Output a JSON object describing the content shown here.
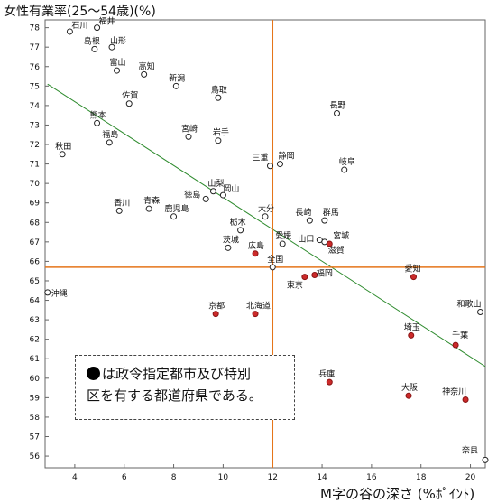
{
  "chart_data": {
    "type": "scatter",
    "ylabel": "女性有業率(25～54歳)(%)",
    "xlabel": "M字の谷の深さ (%ﾎﾟｲﾝﾄ)",
    "xlim": [
      2.8,
      20.6
    ],
    "ylim": [
      55.4,
      78.4
    ],
    "xticks": [
      4,
      6,
      8,
      10,
      12,
      14,
      16,
      18,
      20
    ],
    "yticks": [
      56,
      57,
      58,
      59,
      60,
      61,
      62,
      63,
      64,
      65,
      66,
      67,
      68,
      69,
      70,
      71,
      72,
      73,
      74,
      75,
      76,
      77,
      78
    ],
    "reference_lines": {
      "x": 12,
      "y": 65.7
    },
    "trend_line": {
      "x1": 2.9,
      "y1": 75.1,
      "x2": 20.6,
      "y2": 60.6
    },
    "colors": {
      "reference": "#e5751a",
      "trend": "#2e8b2e",
      "filled": "#cc2a2a",
      "open": "#ffffff"
    },
    "points": [
      {
        "label": "石川",
        "x": 3.8,
        "y": 77.8,
        "filled": false
      },
      {
        "label": "福井",
        "x": 4.9,
        "y": 78.0,
        "filled": false
      },
      {
        "label": "島根",
        "x": 4.8,
        "y": 76.9,
        "filled": false
      },
      {
        "label": "山形",
        "x": 5.5,
        "y": 77.0,
        "filled": false
      },
      {
        "label": "富山",
        "x": 5.7,
        "y": 75.8,
        "filled": false
      },
      {
        "label": "高知",
        "x": 6.8,
        "y": 75.6,
        "filled": false
      },
      {
        "label": "新潟",
        "x": 8.1,
        "y": 75.0,
        "filled": false
      },
      {
        "label": "鳥取",
        "x": 9.8,
        "y": 74.4,
        "filled": false
      },
      {
        "label": "佐賀",
        "x": 6.2,
        "y": 74.1,
        "filled": false
      },
      {
        "label": "長野",
        "x": 14.6,
        "y": 73.6,
        "filled": false
      },
      {
        "label": "熊本",
        "x": 4.9,
        "y": 73.1,
        "filled": false
      },
      {
        "label": "福島",
        "x": 5.4,
        "y": 72.1,
        "filled": false
      },
      {
        "label": "宮崎",
        "x": 8.6,
        "y": 72.4,
        "filled": false
      },
      {
        "label": "岩手",
        "x": 9.8,
        "y": 72.2,
        "filled": false
      },
      {
        "label": "秋田",
        "x": 3.5,
        "y": 71.5,
        "filled": false
      },
      {
        "label": "三重",
        "x": 11.9,
        "y": 70.9,
        "filled": false
      },
      {
        "label": "静岡",
        "x": 12.3,
        "y": 71.0,
        "filled": false
      },
      {
        "label": "岐阜",
        "x": 14.9,
        "y": 70.7,
        "filled": false
      },
      {
        "label": "山梨",
        "x": 9.6,
        "y": 69.6,
        "filled": false
      },
      {
        "label": "徳島",
        "x": 9.3,
        "y": 69.2,
        "filled": false
      },
      {
        "label": "岡山",
        "x": 10.0,
        "y": 69.4,
        "filled": false
      },
      {
        "label": "香川",
        "x": 5.8,
        "y": 68.6,
        "filled": false
      },
      {
        "label": "青森",
        "x": 7.0,
        "y": 68.7,
        "filled": false
      },
      {
        "label": "鹿児島",
        "x": 8.0,
        "y": 68.3,
        "filled": false
      },
      {
        "label": "大分",
        "x": 11.7,
        "y": 68.3,
        "filled": false
      },
      {
        "label": "長崎",
        "x": 13.5,
        "y": 68.1,
        "filled": false
      },
      {
        "label": "群馬",
        "x": 14.1,
        "y": 68.1,
        "filled": false
      },
      {
        "label": "栃木",
        "x": 10.7,
        "y": 67.6,
        "filled": false
      },
      {
        "label": "茨城",
        "x": 10.2,
        "y": 66.7,
        "filled": false
      },
      {
        "label": "愛媛",
        "x": 12.4,
        "y": 66.9,
        "filled": false
      },
      {
        "label": "山口",
        "x": 13.9,
        "y": 67.1,
        "filled": false
      },
      {
        "label": "宮城",
        "x": 14.3,
        "y": 66.9,
        "filled": true
      },
      {
        "label": "滋賀",
        "x": 14.1,
        "y": 67.0,
        "filled": false
      },
      {
        "label": "広島",
        "x": 11.3,
        "y": 66.4,
        "filled": true
      },
      {
        "label": "全国",
        "x": 12.0,
        "y": 65.7,
        "filled": false
      },
      {
        "label": "東京",
        "x": 13.3,
        "y": 65.2,
        "filled": true
      },
      {
        "label": "福岡",
        "x": 13.7,
        "y": 65.3,
        "filled": true
      },
      {
        "label": "愛知",
        "x": 17.7,
        "y": 65.2,
        "filled": true
      },
      {
        "label": "沖縄",
        "x": 2.9,
        "y": 64.4,
        "filled": false
      },
      {
        "label": "京都",
        "x": 9.7,
        "y": 63.3,
        "filled": true
      },
      {
        "label": "北海道",
        "x": 11.3,
        "y": 63.3,
        "filled": true
      },
      {
        "label": "和歌山",
        "x": 20.4,
        "y": 63.4,
        "filled": false
      },
      {
        "label": "埼玉",
        "x": 17.6,
        "y": 62.2,
        "filled": true
      },
      {
        "label": "千葉",
        "x": 19.4,
        "y": 61.7,
        "filled": true
      },
      {
        "label": "兵庫",
        "x": 14.3,
        "y": 59.8,
        "filled": true
      },
      {
        "label": "大阪",
        "x": 17.5,
        "y": 59.1,
        "filled": true
      },
      {
        "label": "神奈川",
        "x": 19.8,
        "y": 58.9,
        "filled": true
      },
      {
        "label": "奈良",
        "x": 20.6,
        "y": 55.8,
        "filled": false
      }
    ]
  },
  "note": {
    "line1": "は政令指定都市及び特別",
    "line2": "区を有する都道府県である。"
  }
}
